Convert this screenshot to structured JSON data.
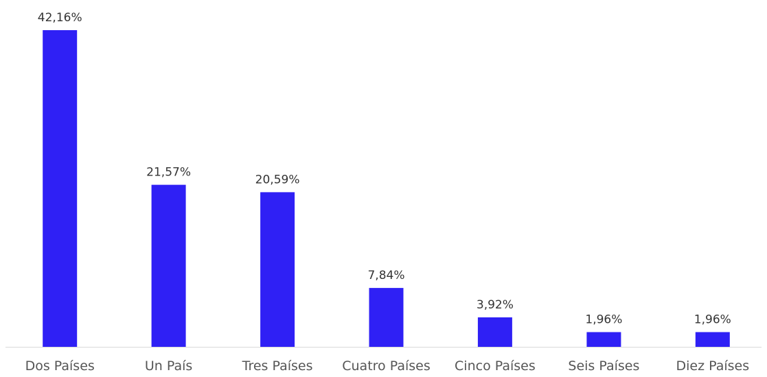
{
  "chart_data": {
    "type": "bar",
    "categories": [
      "Dos Países",
      "Un País",
      "Tres Países",
      "Cuatro Países",
      "Cinco Países",
      "Seis Países",
      "Diez Países"
    ],
    "values": [
      42.16,
      21.57,
      20.59,
      7.84,
      3.92,
      1.96,
      1.96
    ],
    "value_labels": [
      "42,16%",
      "21,57%",
      "20,59%",
      "7,84%",
      "3,92%",
      "1,96%",
      "1,96%"
    ],
    "ylim": [
      0,
      42.16
    ],
    "grid": false,
    "legend": "none",
    "colors": {
      "bar": "#2f20f5",
      "axis": "#d9d9d9",
      "label_text": "#333333",
      "tick_text": "#555555"
    }
  }
}
